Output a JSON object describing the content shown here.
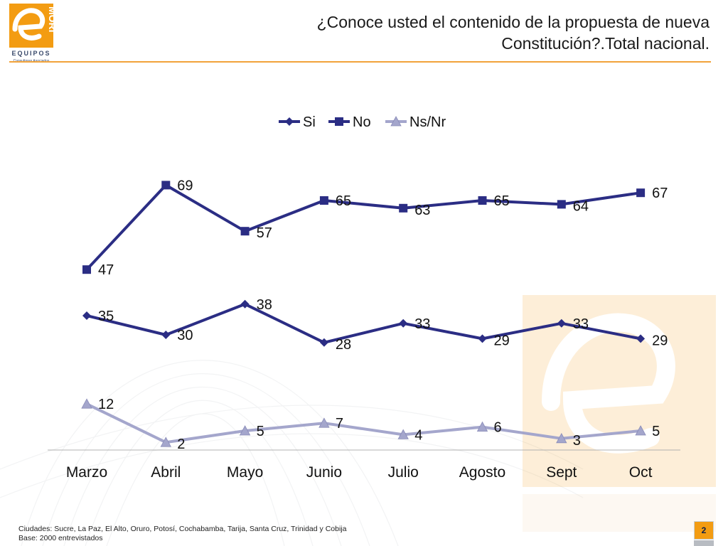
{
  "header": {
    "title_line1": "¿Conoce usted el contenido de la propuesta de nueva",
    "title_line2": "Constitución?.Total nacional.",
    "logo_top": "MORI",
    "logo_bottom": "EQUIPOS",
    "logo_sub": "Consultores Asociados"
  },
  "footer": {
    "cities": "Ciudades: Sucre, La Paz, El Alto, Oruro, Potosí, Cochabamba, Tarija, Santa Cruz, Trinidad y Cobija",
    "base": "Base: 2000 entrevistados",
    "page_number": "2"
  },
  "colors": {
    "accent": "#f2a33a",
    "series_si": "#2b2d84",
    "series_no": "#2b2d84",
    "series_nsnr": "#a4a6cc",
    "badge": "#f39c12"
  },
  "chart_data": {
    "type": "line",
    "title": "",
    "xlabel": "",
    "ylabel": "",
    "categories": [
      "Marzo",
      "Abril",
      "Mayo",
      "Junio",
      "Julio",
      "Agosto",
      "Sept",
      "Oct"
    ],
    "ylim": [
      0,
      80
    ],
    "legend_position": "top-center",
    "grid": false,
    "series": [
      {
        "name": "Si",
        "marker": "diamond",
        "color": "#2b2d84",
        "values": [
          35,
          30,
          38,
          28,
          33,
          29,
          33,
          29
        ]
      },
      {
        "name": "No",
        "marker": "square",
        "color": "#2b2d84",
        "values": [
          47,
          69,
          57,
          65,
          63,
          65,
          64,
          67
        ]
      },
      {
        "name": "Ns/Nr",
        "marker": "triangle",
        "color": "#a4a6cc",
        "values": [
          12,
          2,
          5,
          7,
          4,
          6,
          3,
          5
        ]
      }
    ]
  }
}
